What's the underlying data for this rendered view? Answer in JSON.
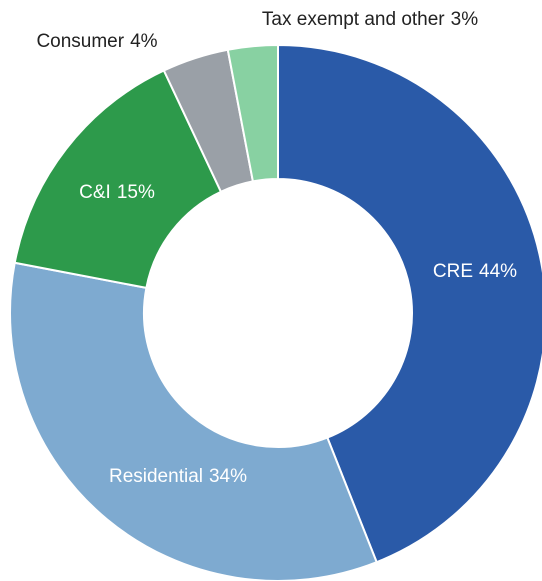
{
  "chart_data": {
    "type": "donut",
    "categories": [
      "CRE",
      "Residential",
      "C&I",
      "Consumer",
      "Tax exempt and other"
    ],
    "values": [
      44,
      34,
      15,
      4,
      3
    ],
    "value_labels": [
      "44%",
      "34%",
      "15%",
      "4%",
      "3%"
    ],
    "colors": [
      "#2a5aa8",
      "#7eaad0",
      "#2d9a4b",
      "#9aa0a7",
      "#88d1a2"
    ]
  }
}
